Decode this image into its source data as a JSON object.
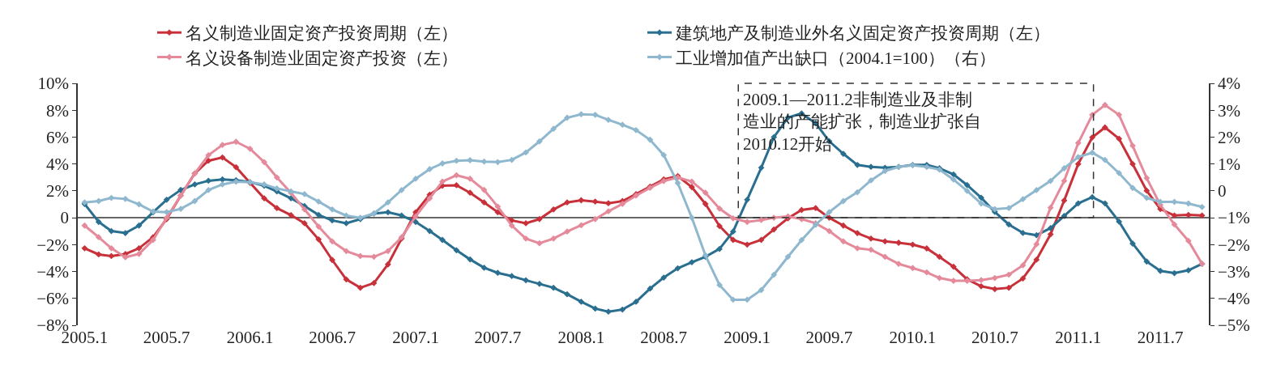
{
  "chart_data": {
    "type": "line",
    "x": [
      "2005-01",
      "2005-02",
      "2005-03",
      "2005-04",
      "2005-05",
      "2005-06",
      "2005-07",
      "2005-08",
      "2005-09",
      "2005-10",
      "2005-11",
      "2005-12",
      "2006-01",
      "2006-02",
      "2006-03",
      "2006-04",
      "2006-05",
      "2006-06",
      "2006-07",
      "2006-08",
      "2006-09",
      "2006-10",
      "2006-11",
      "2006-12",
      "2007-01",
      "2007-02",
      "2007-03",
      "2007-04",
      "2007-05",
      "2007-06",
      "2007-07",
      "2007-08",
      "2007-09",
      "2007-10",
      "2007-11",
      "2007-12",
      "2008-01",
      "2008-02",
      "2008-03",
      "2008-04",
      "2008-05",
      "2008-06",
      "2008-07",
      "2008-08",
      "2008-09",
      "2008-10",
      "2008-11",
      "2008-12",
      "2009-01",
      "2009-02",
      "2009-03",
      "2009-04",
      "2009-05",
      "2009-06",
      "2009-07",
      "2009-08",
      "2009-09",
      "2009-10",
      "2009-11",
      "2009-12",
      "2010-01",
      "2010-02",
      "2010-03",
      "2010-04",
      "2010-05",
      "2010-06",
      "2010-07",
      "2010-08",
      "2010-09",
      "2010-10",
      "2010-11",
      "2010-12",
      "2011-01",
      "2011-02",
      "2011-03",
      "2011-04",
      "2011-05",
      "2011-06",
      "2011-07",
      "2011-08",
      "2011-09",
      "2011-10"
    ],
    "series": [
      {
        "name": "名义制造业固定资产投资周期（左）",
        "color": "#c8313a",
        "values": [
          -2.27,
          -2.73,
          -2.85,
          -2.7,
          -2.27,
          -1.45,
          -0.1,
          1.65,
          3.3,
          4.24,
          4.49,
          3.76,
          2.59,
          1.45,
          0.72,
          0.2,
          -0.41,
          -1.61,
          -3.14,
          -4.59,
          -5.21,
          -4.86,
          -3.47,
          -1.55,
          0.41,
          1.72,
          2.38,
          2.42,
          1.86,
          1.14,
          0.41,
          -0.2,
          -0.41,
          -0.1,
          0.62,
          1.14,
          1.3,
          1.2,
          1.08,
          1.24,
          1.76,
          2.32,
          2.85,
          3.1,
          2.28,
          1.03,
          -0.62,
          -1.65,
          -2.0,
          -1.65,
          -0.87,
          -0.04,
          0.58,
          0.72,
          0,
          -0.58,
          -1.14,
          -1.55,
          -1.76,
          -1.86,
          -2.0,
          -2.28,
          -2.91,
          -3.64,
          -4.58,
          -5.1,
          -5.31,
          -5.21,
          -4.52,
          -3.12,
          -1.23,
          1.28,
          4.0,
          5.98,
          6.72,
          5.88,
          4.0,
          2.01,
          0.65,
          0.17,
          0.21,
          0.17
        ]
      },
      {
        "name": "建筑地产及制造业外名义固定资产投资周期（左）",
        "color": "#2a6f90",
        "values": [
          1.03,
          -0.31,
          -0.99,
          -1.14,
          -0.58,
          0.41,
          1.34,
          2.07,
          2.48,
          2.75,
          2.85,
          2.79,
          2.65,
          2.38,
          1.96,
          1.45,
          0.87,
          0.21,
          -0.2,
          -0.41,
          -0.1,
          0.31,
          0.41,
          0.17,
          -0.31,
          -0.99,
          -1.65,
          -2.42,
          -3.1,
          -3.72,
          -4.1,
          -4.34,
          -4.65,
          -4.92,
          -5.21,
          -5.69,
          -6.25,
          -6.76,
          -6.99,
          -6.83,
          -6.25,
          -5.27,
          -4.45,
          -3.76,
          -3.31,
          -2.9,
          -2.32,
          -1.03,
          1.34,
          3.72,
          6.0,
          7.45,
          7.76,
          7.03,
          5.69,
          4.76,
          3.93,
          3.79,
          3.72,
          3.79,
          3.93,
          3.93,
          3.68,
          3.22,
          2.43,
          1.49,
          0.44,
          -0.5,
          -1.13,
          -1.3,
          -0.77,
          0.13,
          1.07,
          1.53,
          1.07,
          -0.29,
          -1.92,
          -3.26,
          -3.95,
          -4.12,
          -3.91,
          -3.43
        ]
      },
      {
        "name": "名义设备制造业固定资产投资（左）",
        "color": "#e58a9b",
        "values": [
          -0.58,
          -1.45,
          -2.27,
          -2.94,
          -2.69,
          -1.65,
          0,
          1.65,
          3.3,
          4.65,
          5.42,
          5.65,
          5.13,
          4.14,
          3.0,
          1.86,
          0.62,
          -0.66,
          -1.76,
          -2.48,
          -2.85,
          -2.9,
          -2.48,
          -1.45,
          0.1,
          1.45,
          2.69,
          3.16,
          2.9,
          2.07,
          0.83,
          -0.58,
          -1.55,
          -1.9,
          -1.55,
          -1.03,
          -0.56,
          -0.1,
          0.48,
          1.03,
          1.65,
          2.23,
          2.73,
          3.0,
          2.69,
          1.86,
          0.68,
          -0.04,
          -0.31,
          -0.17,
          0,
          0.1,
          -0.1,
          -0.41,
          -0.99,
          -1.76,
          -2.27,
          -2.38,
          -2.91,
          -3.43,
          -3.74,
          -4.06,
          -4.48,
          -4.69,
          -4.69,
          -4.64,
          -4.48,
          -4.23,
          -3.54,
          -1.97,
          0.75,
          2.74,
          5.56,
          7.66,
          8.39,
          7.66,
          5.36,
          2.95,
          0.96,
          -0.5,
          -1.72,
          -3.43
        ]
      },
      {
        "name": "工业增加值产出缺口（2004.1=100）（右）",
        "color": "#8fb8cf",
        "axis": "y2",
        "values": [
          -0.43,
          -0.38,
          -0.26,
          -0.3,
          -0.5,
          -0.77,
          -0.79,
          -0.67,
          -0.38,
          0.03,
          0.24,
          0.34,
          0.32,
          0.24,
          0.09,
          -0.02,
          -0.12,
          -0.4,
          -0.69,
          -0.92,
          -1.0,
          -0.84,
          -0.43,
          0.03,
          0.45,
          0.81,
          1.02,
          1.12,
          1.14,
          1.09,
          1.07,
          1.15,
          1.43,
          1.84,
          2.31,
          2.72,
          2.85,
          2.83,
          2.64,
          2.46,
          2.26,
          1.9,
          1.33,
          0.29,
          -1.0,
          -2.4,
          -3.5,
          -4.05,
          -4.05,
          -3.69,
          -3.12,
          -2.45,
          -1.83,
          -1.26,
          -0.79,
          -0.38,
          -0.05,
          0.39,
          0.74,
          0.89,
          0.95,
          0.89,
          0.79,
          0.42,
          0.0,
          -0.47,
          -0.68,
          -0.64,
          -0.31,
          0.03,
          0.37,
          0.84,
          1.26,
          1.42,
          1.15,
          0.66,
          0.11,
          -0.26,
          -0.41,
          -0.41,
          -0.47,
          -0.6
        ]
      }
    ],
    "xlim": [
      "2004-12-17",
      "2011-10-16"
    ],
    "xticks": [
      {
        "value": "2005-01",
        "label": "2005.1"
      },
      {
        "value": "2005-07",
        "label": "2005.7"
      },
      {
        "value": "2006-01",
        "label": "2006.1"
      },
      {
        "value": "2006-07",
        "label": "2006.7"
      },
      {
        "value": "2007-01",
        "label": "2007.1"
      },
      {
        "value": "2007-07",
        "label": "2007.7"
      },
      {
        "value": "2008-01",
        "label": "2008.1"
      },
      {
        "value": "2008-07",
        "label": "2008.7"
      },
      {
        "value": "2009-01",
        "label": "2009.1"
      },
      {
        "value": "2009-07",
        "label": "2009.7"
      },
      {
        "value": "2010-01",
        "label": "2010.1"
      },
      {
        "value": "2010-07",
        "label": "2010.7"
      },
      {
        "value": "2011-01",
        "label": "2011.1"
      },
      {
        "value": "2011-07",
        "label": "2011.7"
      }
    ],
    "ylim": [
      -8,
      10
    ],
    "yticks": [
      {
        "value": -8,
        "label": "−8%"
      },
      {
        "value": -6,
        "label": "−6%"
      },
      {
        "value": -4,
        "label": "−4%"
      },
      {
        "value": -2,
        "label": "−2%"
      },
      0,
      {
        "value": 2,
        "label": "2%"
      },
      {
        "value": 4,
        "label": "4%"
      },
      {
        "value": 6,
        "label": "6%"
      },
      {
        "value": 8,
        "label": "8%"
      },
      {
        "value": 10,
        "label": "10%"
      }
    ],
    "y2lim": [
      -5,
      4
    ],
    "y2ticks": [
      {
        "value": -5,
        "label": "−5%"
      },
      {
        "value": -4,
        "label": "−4%"
      },
      {
        "value": -3,
        "label": "−3%"
      },
      {
        "value": -2,
        "label": "−2%"
      },
      {
        "value": -1,
        "label": "−1%"
      },
      0,
      {
        "value": 1,
        "label": "1%"
      },
      {
        "value": 2,
        "label": "2%"
      },
      {
        "value": 3,
        "label": "3%"
      },
      {
        "value": 4,
        "label": "4%"
      }
    ],
    "annotations": [
      "2009.1—2011.2非制造业及非制造业的产能扩张，制造业扩张自2010.12开始"
    ],
    "ref_lines": [
      {
        "axis": "y",
        "value": 0,
        "color": "#333333"
      }
    ],
    "marker": "diamond",
    "line_style": "solid",
    "legend": "top",
    "grid": false
  }
}
